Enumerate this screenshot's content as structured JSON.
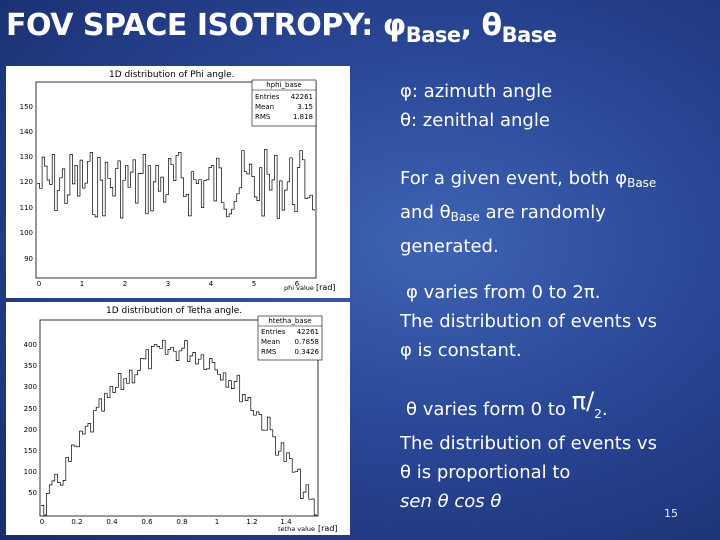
{
  "slide": {
    "title_main": "FOV SPACE ISOTROPY: ",
    "phi_symbol": "φ",
    "base_sub": "Base",
    "comma": ", ",
    "theta_symbol": "θ",
    "page_number": "15"
  },
  "text": {
    "phi_def": "φ: azimuth angle",
    "theta_def": "θ: zenithal angle",
    "para1_a": "For a given event, both ",
    "para1_phi": "φ",
    "para1_base1": "Base",
    "para1_and": "and ",
    "para1_theta": "θ",
    "para1_base2": "Base",
    "para1_b": " are randomly",
    "para1_c": "generated.",
    "para2_l1": "φ varies from 0 to 2π.",
    "para2_l2": "The distribution of events vs",
    "para2_l3": "φ is constant.",
    "para3_a": "θ varies form 0 to ",
    "para3_pi": "π",
    "para3_slash": "/",
    "para3_two": "2",
    "para3_dot": ".",
    "para3_l2": "The distribution of events vs",
    "para3_l3": "θ is proportional to",
    "para3_l4": "sen θ cos θ"
  },
  "plot1": {
    "title": "1D distribution of Phi angle.",
    "stats_name": "hphi_base",
    "stats": [
      {
        "label": "Entries",
        "value": "42261"
      },
      {
        "label": "Mean",
        "value": "3.15"
      },
      {
        "label": "RMS",
        "value": "1.818"
      }
    ],
    "x_axis_label": "phi value",
    "unit": "[rad]",
    "y_ticks": [
      "150",
      "140",
      "130",
      "120",
      "110",
      "100",
      "90"
    ],
    "x_ticks": [
      "0",
      "1",
      "2",
      "3",
      "4",
      "5",
      "6"
    ]
  },
  "plot2": {
    "title": "1D distribution of Tetha angle.",
    "stats_name": "htetha_base",
    "stats": [
      {
        "label": "Entries",
        "value": "42261"
      },
      {
        "label": "Mean",
        "value": "0.7858"
      },
      {
        "label": "RMS",
        "value": "0.3426"
      }
    ],
    "x_axis_label": "tetha value",
    "unit": "[rad]",
    "y_ticks": [
      "400",
      "350",
      "300",
      "250",
      "200",
      "150",
      "100",
      "50"
    ],
    "x_ticks": [
      "0",
      "0.2",
      "0.4",
      "0.6",
      "0.8",
      "1",
      "1.2",
      "1.4"
    ]
  }
}
